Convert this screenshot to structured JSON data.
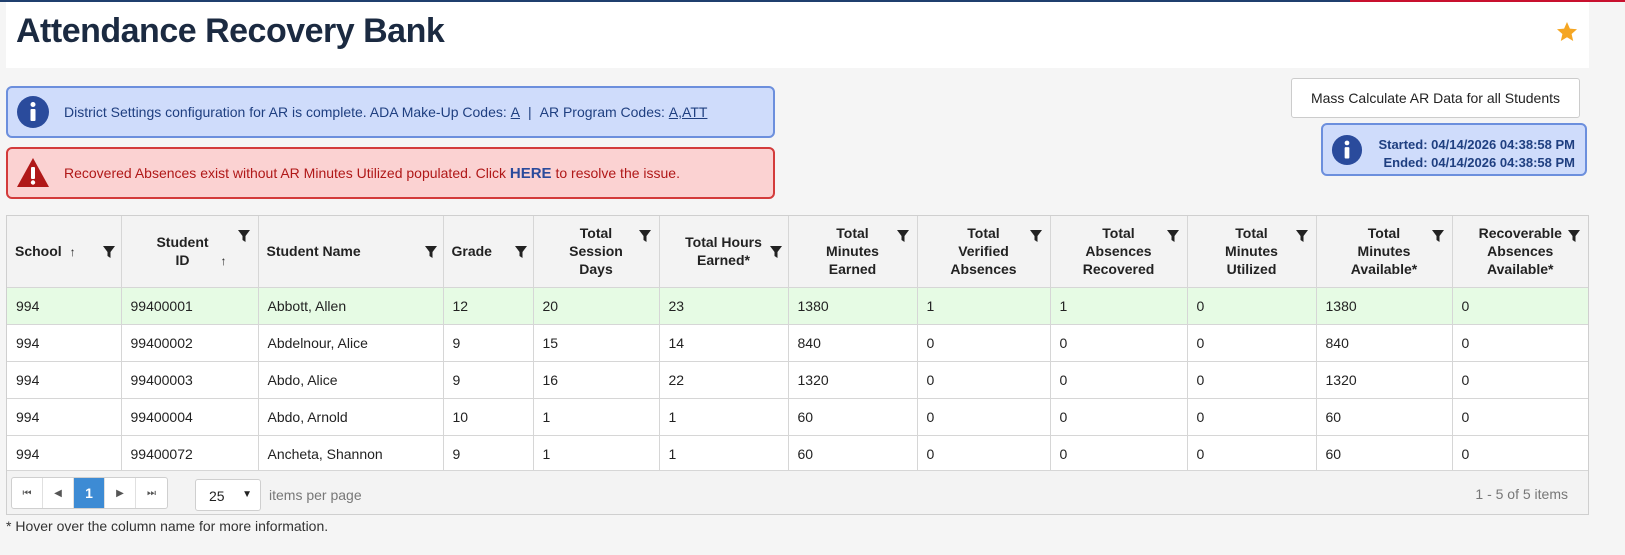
{
  "header": {
    "title": "Attendance Recovery Bank",
    "favorite_icon": "star-icon",
    "accent": "#f5a623"
  },
  "alerts": {
    "info": {
      "icon": "info-icon",
      "text": "District Settings configuration for AR is complete. ADA Make-Up Codes:",
      "ada_code": "A",
      "separator": "|",
      "program_label": "AR Program Codes:",
      "program_codes": "A,ATT"
    },
    "warning": {
      "icon": "warning-icon",
      "text_before": "Recovered Absences exist without AR Minutes Utilized populated. Click",
      "link": "HERE",
      "text_after": "to resolve the issue."
    }
  },
  "mass_calc": {
    "button_label": "Mass Calculate AR Data for all Students",
    "started": "Started: 04/14/2026 04:38:58 PM",
    "ended": "Ended: 04/14/2026 04:38:58 PM"
  },
  "grid": {
    "columns": [
      {
        "label": "School",
        "sort": "↑"
      },
      {
        "label": "Student ID",
        "sort": "↑"
      },
      {
        "label": "Student Name"
      },
      {
        "label": "Grade"
      },
      {
        "label": "Total Session Days"
      },
      {
        "label": "Total Hours Earned*"
      },
      {
        "label": "Total Minutes Earned"
      },
      {
        "label": "Total Verified Absences"
      },
      {
        "label": "Total Absences Recovered"
      },
      {
        "label": "Total Minutes Utilized"
      },
      {
        "label": "Total Minutes Available*"
      },
      {
        "label": "Recoverable Absences Available*"
      }
    ],
    "rows": [
      [
        "994",
        "99400001",
        "Abbott, Allen",
        "12",
        "20",
        "23",
        "1380",
        "1",
        "1",
        "0",
        "1380",
        "0"
      ],
      [
        "994",
        "99400002",
        "Abdelnour, Alice",
        "9",
        "15",
        "14",
        "840",
        "0",
        "0",
        "0",
        "840",
        "0"
      ],
      [
        "994",
        "99400003",
        "Abdo, Alice",
        "9",
        "16",
        "22",
        "1320",
        "0",
        "0",
        "0",
        "1320",
        "0"
      ],
      [
        "994",
        "99400004",
        "Abdo, Arnold",
        "10",
        "1",
        "1",
        "60",
        "0",
        "0",
        "0",
        "60",
        "0"
      ],
      [
        "994",
        "99400072",
        "Ancheta, Shannon",
        "9",
        "1",
        "1",
        "60",
        "0",
        "0",
        "0",
        "60",
        "0"
      ]
    ]
  },
  "pager": {
    "current_page": "1",
    "page_size": "25",
    "per_page_label": "items per page",
    "info": "1 - 5 of 5 items"
  },
  "footnote": "* Hover over the column name for more information."
}
